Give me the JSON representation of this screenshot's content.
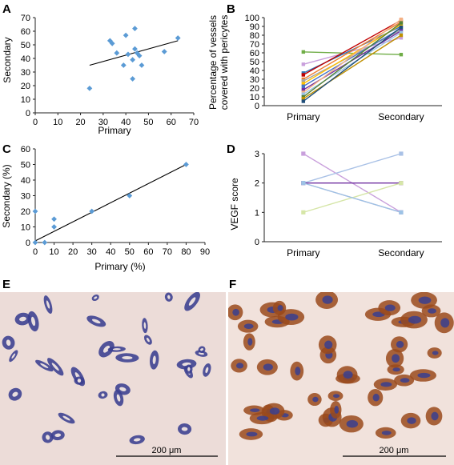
{
  "figure": {
    "panels": [
      "A",
      "B",
      "C",
      "D",
      "E",
      "F"
    ],
    "scale_bar_label": "200 μm"
  },
  "colors": {
    "diamond": "#5b9bd5",
    "fit_line": "#000000",
    "tissue_E_bg": "#ecdcd8",
    "tissue_F_bg": "#f1e2dc",
    "stain_blue": "#3a3f8f",
    "stain_brown": "#9a4a1c"
  },
  "chart_data": [
    {
      "id": "A",
      "type": "scatter",
      "xlabel": "Primary",
      "ylabel": "Secondary",
      "xlim": [
        0,
        70
      ],
      "ylim": [
        0,
        70
      ],
      "xticks": [
        0,
        10,
        20,
        30,
        40,
        50,
        60,
        70
      ],
      "yticks": [
        0,
        10,
        20,
        30,
        40,
        50,
        60,
        70
      ],
      "points": [
        [
          24,
          18
        ],
        [
          33,
          53
        ],
        [
          34,
          51
        ],
        [
          36,
          44
        ],
        [
          39,
          35
        ],
        [
          40,
          57
        ],
        [
          41,
          43
        ],
        [
          43,
          25
        ],
        [
          43,
          39
        ],
        [
          44,
          62
        ],
        [
          44,
          47
        ],
        [
          45,
          44
        ],
        [
          46,
          42
        ],
        [
          47,
          35
        ],
        [
          57,
          45
        ],
        [
          63,
          55
        ]
      ],
      "trendline": [
        [
          24,
          35
        ],
        [
          63,
          53
        ]
      ]
    },
    {
      "id": "B",
      "type": "line",
      "categories": [
        "Primary",
        "Secondary"
      ],
      "ylabel": "Percentage of vessels covered with pericytes",
      "ylim": [
        0,
        100
      ],
      "yticks": [
        0,
        10,
        20,
        30,
        40,
        50,
        60,
        70,
        80,
        90,
        100
      ],
      "series": [
        {
          "values": [
            61,
            58
          ],
          "color": "#70ad47"
        },
        {
          "values": [
            47,
            77
          ],
          "color": "#c9a0dc"
        },
        {
          "values": [
            37,
            90
          ],
          "color": "#2e75b6"
        },
        {
          "values": [
            35,
            97
          ],
          "color": "#c00000"
        },
        {
          "values": [
            30,
            95
          ],
          "color": "#ed7d31"
        },
        {
          "values": [
            28,
            86
          ],
          "color": "#a5a5a5"
        },
        {
          "values": [
            25,
            92
          ],
          "color": "#ffc000"
        },
        {
          "values": [
            22,
            88
          ],
          "color": "#4472c4"
        },
        {
          "values": [
            18,
            85
          ],
          "color": "#7030a0"
        },
        {
          "values": [
            15,
            98
          ],
          "color": "#f4b183"
        },
        {
          "values": [
            13,
            83
          ],
          "color": "#9dc3e6"
        },
        {
          "values": [
            10,
            94
          ],
          "color": "#548235"
        },
        {
          "values": [
            8,
            80
          ],
          "color": "#bf9000"
        },
        {
          "values": [
            5,
            89
          ],
          "color": "#1f4e79"
        }
      ]
    },
    {
      "id": "C",
      "type": "scatter",
      "xlabel": "Primary (%)",
      "ylabel": "Secondary (%)",
      "xlim": [
        0,
        90
      ],
      "ylim": [
        0,
        60
      ],
      "xticks": [
        0,
        10,
        20,
        30,
        40,
        50,
        60,
        70,
        80,
        90
      ],
      "yticks": [
        0,
        10,
        20,
        30,
        40,
        50,
        60
      ],
      "points": [
        [
          0,
          20
        ],
        [
          0,
          0
        ],
        [
          5,
          0
        ],
        [
          10,
          10
        ],
        [
          10,
          15
        ],
        [
          30,
          20
        ],
        [
          50,
          30
        ],
        [
          80,
          50
        ]
      ],
      "trendline": [
        [
          0,
          1
        ],
        [
          80,
          50
        ]
      ]
    },
    {
      "id": "D",
      "type": "line",
      "categories": [
        "Primary",
        "Secondary"
      ],
      "ylabel": "VEGF score",
      "ylim": [
        0,
        3
      ],
      "yticks": [
        0,
        1,
        2,
        3
      ],
      "series": [
        {
          "values": [
            3,
            1
          ],
          "color": "#c9a0dc"
        },
        {
          "values": [
            2,
            3
          ],
          "color": "#a9c1e6"
        },
        {
          "values": [
            2,
            2
          ],
          "color": "#7030a0"
        },
        {
          "values": [
            2,
            1
          ],
          "color": "#d9a5c8"
        },
        {
          "values": [
            1,
            2
          ],
          "color": "#d6e6a8"
        },
        {
          "values": [
            2,
            1
          ],
          "color": "#9dc3e6"
        }
      ]
    }
  ]
}
